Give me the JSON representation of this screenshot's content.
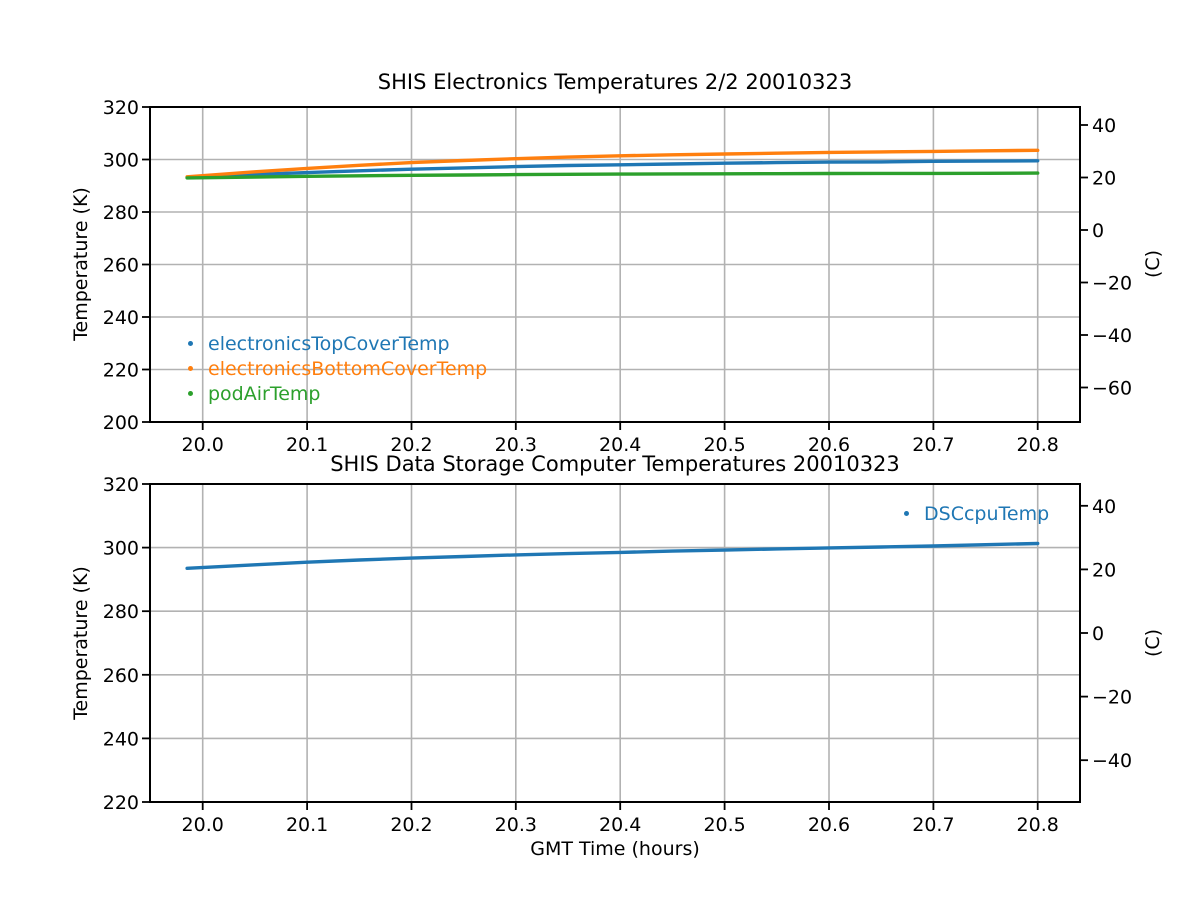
{
  "figure": {
    "background": "#ffffff",
    "grid_color": "#b2b2b2",
    "axis_color": "#000000",
    "text_color": "#000000"
  },
  "chart_data": [
    {
      "type": "scatter",
      "title": "SHIS Electronics Temperatures 2/2 20010323",
      "xlabel": "",
      "ylabel": "Temperature (K)",
      "ylabel_right": "(C)",
      "xlim": [
        19.9495,
        20.8405
      ],
      "ylim": [
        200,
        320
      ],
      "xticks": [
        20.0,
        20.1,
        20.2,
        20.3,
        20.4,
        20.5,
        20.6,
        20.7,
        20.8
      ],
      "yticks": [
        200,
        220,
        240,
        260,
        280,
        300,
        320
      ],
      "yticks_right_celsius": [
        40,
        20,
        0,
        -20,
        -40,
        -60
      ],
      "celsius_offset": 273.15,
      "grid": true,
      "legend_location": "lower left",
      "x": [
        19.985,
        20.05,
        20.1,
        20.15,
        20.2,
        20.25,
        20.3,
        20.35,
        20.4,
        20.45,
        20.5,
        20.55,
        20.6,
        20.65,
        20.7,
        20.75,
        20.8
      ],
      "series": [
        {
          "name": "electronicsTopCoverTemp",
          "color": "#1f77b4",
          "values": [
            293.2,
            294.3,
            295.0,
            295.7,
            296.3,
            296.8,
            297.3,
            297.7,
            298.0,
            298.3,
            298.6,
            298.8,
            299.0,
            299.1,
            299.3,
            299.4,
            299.5
          ]
        },
        {
          "name": "electronicsBottomCoverTemp",
          "color": "#ff7f0e",
          "values": [
            293.4,
            295.3,
            296.6,
            297.8,
            298.8,
            299.6,
            300.3,
            300.9,
            301.4,
            301.8,
            302.1,
            302.4,
            302.7,
            302.9,
            303.1,
            303.3,
            303.5
          ]
        },
        {
          "name": "podAirTemp",
          "color": "#2ca02c",
          "values": [
            293.0,
            293.3,
            293.6,
            293.8,
            294.0,
            294.1,
            294.25,
            294.35,
            294.45,
            294.5,
            294.55,
            294.6,
            294.65,
            294.7,
            294.72,
            294.75,
            294.8
          ]
        }
      ]
    },
    {
      "type": "scatter",
      "title": "SHIS Data Storage Computer Temperatures 20010323",
      "xlabel": "GMT Time (hours)",
      "ylabel": "Temperature (K)",
      "ylabel_right": "(C)",
      "xlim": [
        19.9495,
        20.8405
      ],
      "ylim": [
        220,
        320
      ],
      "xticks": [
        20.0,
        20.1,
        20.2,
        20.3,
        20.4,
        20.5,
        20.6,
        20.7,
        20.8
      ],
      "yticks": [
        220,
        240,
        260,
        280,
        300,
        320
      ],
      "yticks_right_celsius": [
        40,
        20,
        0,
        -20,
        -40
      ],
      "celsius_offset": 273.15,
      "grid": true,
      "legend_location": "upper right",
      "x": [
        19.985,
        20.05,
        20.1,
        20.15,
        20.2,
        20.25,
        20.3,
        20.35,
        20.4,
        20.45,
        20.5,
        20.55,
        20.6,
        20.65,
        20.7,
        20.75,
        20.8
      ],
      "series": [
        {
          "name": "DSCcpuTemp",
          "color": "#1f77b4",
          "values": [
            293.5,
            294.6,
            295.4,
            296.1,
            296.7,
            297.2,
            297.7,
            298.1,
            298.5,
            298.9,
            299.2,
            299.6,
            299.9,
            300.2,
            300.5,
            300.9,
            301.3
          ]
        }
      ]
    }
  ]
}
